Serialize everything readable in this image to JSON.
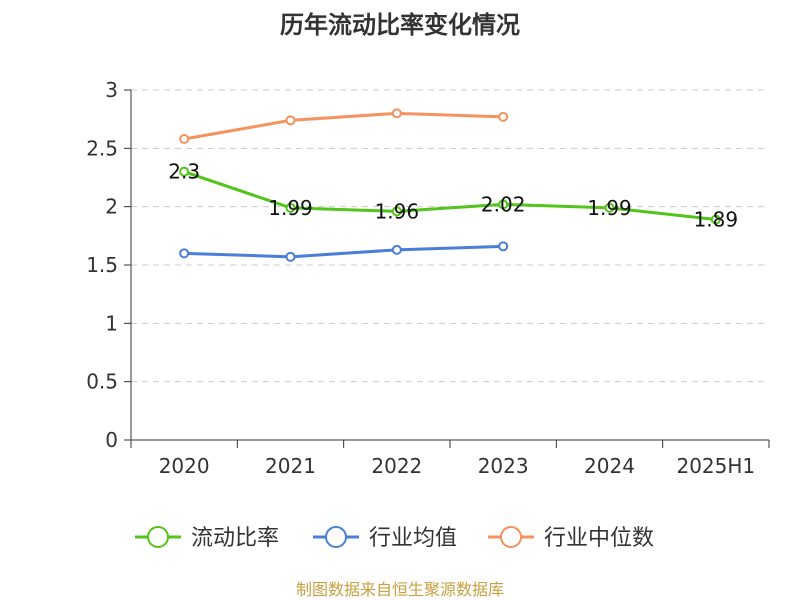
{
  "chart_data": {
    "type": "line",
    "title": "历年流动比率变化情况",
    "categories": [
      "2020",
      "2021",
      "2022",
      "2023",
      "2024",
      "2025H1"
    ],
    "ylim": [
      0,
      3
    ],
    "yticks": [
      "0",
      "0.5",
      "1",
      "1.5",
      "2",
      "2.5",
      "3"
    ],
    "grid": true,
    "legend_placement": "bottom",
    "series": [
      {
        "name": "流动比率",
        "color": "#52c41a",
        "values": [
          2.3,
          1.99,
          1.96,
          2.02,
          1.99,
          1.89
        ],
        "labels": [
          "2.3",
          "1.99",
          "1.96",
          "2.02",
          "1.99",
          "1.89"
        ]
      },
      {
        "name": "行业均值",
        "color": "#4a7fd9",
        "values": [
          1.6,
          1.57,
          1.63,
          1.66,
          null,
          null
        ]
      },
      {
        "name": "行业中位数",
        "color": "#f5925e",
        "values": [
          2.58,
          2.74,
          2.8,
          2.77,
          null,
          null
        ]
      }
    ],
    "source": "制图数据来自恒生聚源数据库"
  }
}
